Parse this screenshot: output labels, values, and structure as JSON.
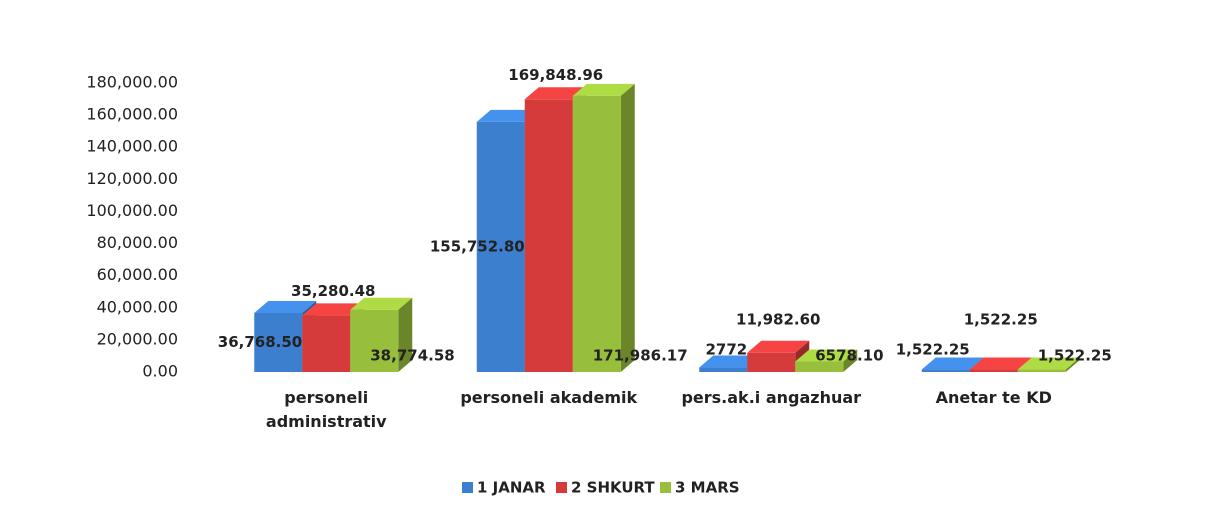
{
  "chart_data": {
    "type": "bar3d",
    "categories": [
      "personeli administrativ",
      "personeli akademik",
      "pers.ak.i angazhuar",
      "Anetar te KD"
    ],
    "series": [
      {
        "name": "1 JANAR",
        "color": "#3c7fcf",
        "values": [
          36768.5,
          155752.8,
          2772,
          1522.25
        ],
        "value_labels": [
          "36,768.50",
          "155,752.80",
          "2772",
          "1,522.25"
        ]
      },
      {
        "name": "2 SHKURT",
        "color": "#d63b3b",
        "values": [
          35280.48,
          169848.96,
          11982.6,
          1522.25
        ],
        "value_labels": [
          "35,280.48",
          "169,848.96",
          "11,982.60",
          "1,522.25"
        ]
      },
      {
        "name": "3 MARS",
        "color": "#98bf3b",
        "values": [
          38774.58,
          171986.17,
          6578.1,
          1522.25
        ],
        "value_labels": [
          "38,774.58",
          "171,986.17",
          "6578.10",
          "1,522.25"
        ]
      }
    ],
    "ylim": [
      0,
      180000
    ],
    "yticks": [
      {
        "value": 0,
        "label": "0.00"
      },
      {
        "value": 20000,
        "label": "20,000.00"
      },
      {
        "value": 40000,
        "label": "40,000.00"
      },
      {
        "value": 60000,
        "label": "60,000.00"
      },
      {
        "value": 80000,
        "label": "80,000.00"
      },
      {
        "value": 100000,
        "label": "100,000.00"
      },
      {
        "value": 120000,
        "label": "120,000.00"
      },
      {
        "value": 140000,
        "label": "140,000.00"
      },
      {
        "value": 160000,
        "label": "160,000.00"
      },
      {
        "value": 180000,
        "label": "180,000.00"
      }
    ],
    "legend": "bottom"
  }
}
